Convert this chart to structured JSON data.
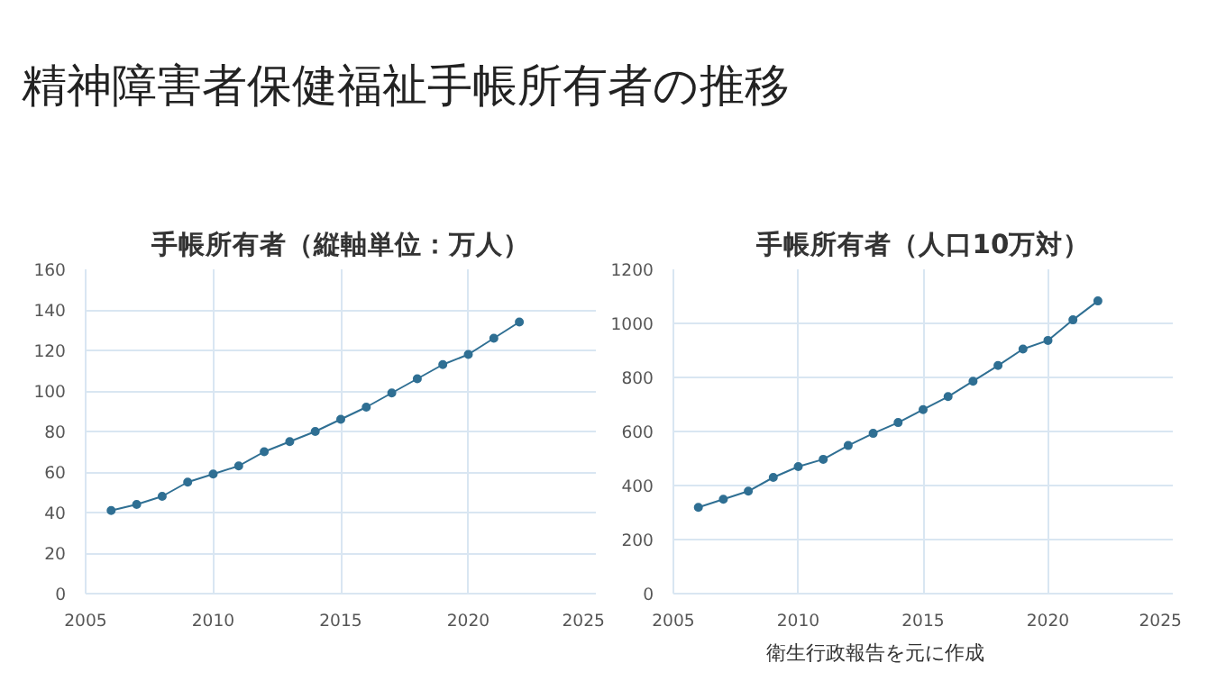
{
  "chart_data": [
    {
      "type": "line",
      "title": "手帳所有者（縦軸単位：万人）",
      "annotations": [
        "精神障害者保健福祉手帳所有者の推移"
      ],
      "x": [
        2006,
        2007,
        2008,
        2009,
        2010,
        2011,
        2012,
        2013,
        2014,
        2015,
        2016,
        2017,
        2018,
        2019,
        2020,
        2021,
        2022
      ],
      "series": [
        {
          "color": "#2f6f93",
          "values": [
            41,
            44,
            48,
            55,
            59,
            63,
            70,
            75,
            80,
            86,
            92,
            99,
            106,
            113,
            118,
            126,
            134
          ]
        }
      ],
      "xlim": [
        2005,
        2025
      ],
      "xticks": [
        2005,
        2010,
        2015,
        2020,
        2025
      ],
      "ylim": [
        0,
        160
      ],
      "yticks": [
        0,
        20,
        40,
        60,
        80,
        100,
        120,
        140,
        160
      ],
      "grid": true,
      "marker": "circle",
      "line_style": "solid"
    },
    {
      "type": "line",
      "title": "手帳所有者（人口10万対）",
      "annotations": [
        "衛生行政報告を元に作成"
      ],
      "x": [
        2006,
        2007,
        2008,
        2009,
        2010,
        2011,
        2012,
        2013,
        2014,
        2015,
        2016,
        2017,
        2018,
        2019,
        2020,
        2021,
        2022
      ],
      "series": [
        {
          "color": "#2f6f93",
          "values": [
            319,
            349,
            379,
            430,
            470,
            497,
            548,
            593,
            633,
            681,
            729,
            786,
            844,
            905,
            937,
            1013,
            1083
          ]
        }
      ],
      "xlim": [
        2005,
        2025
      ],
      "xticks": [
        2005,
        2010,
        2015,
        2020,
        2025
      ],
      "ylim": [
        0,
        1200
      ],
      "yticks": [
        0,
        200,
        400,
        600,
        800,
        1000,
        1200
      ],
      "grid": true,
      "marker": "circle",
      "line_style": "solid"
    }
  ]
}
